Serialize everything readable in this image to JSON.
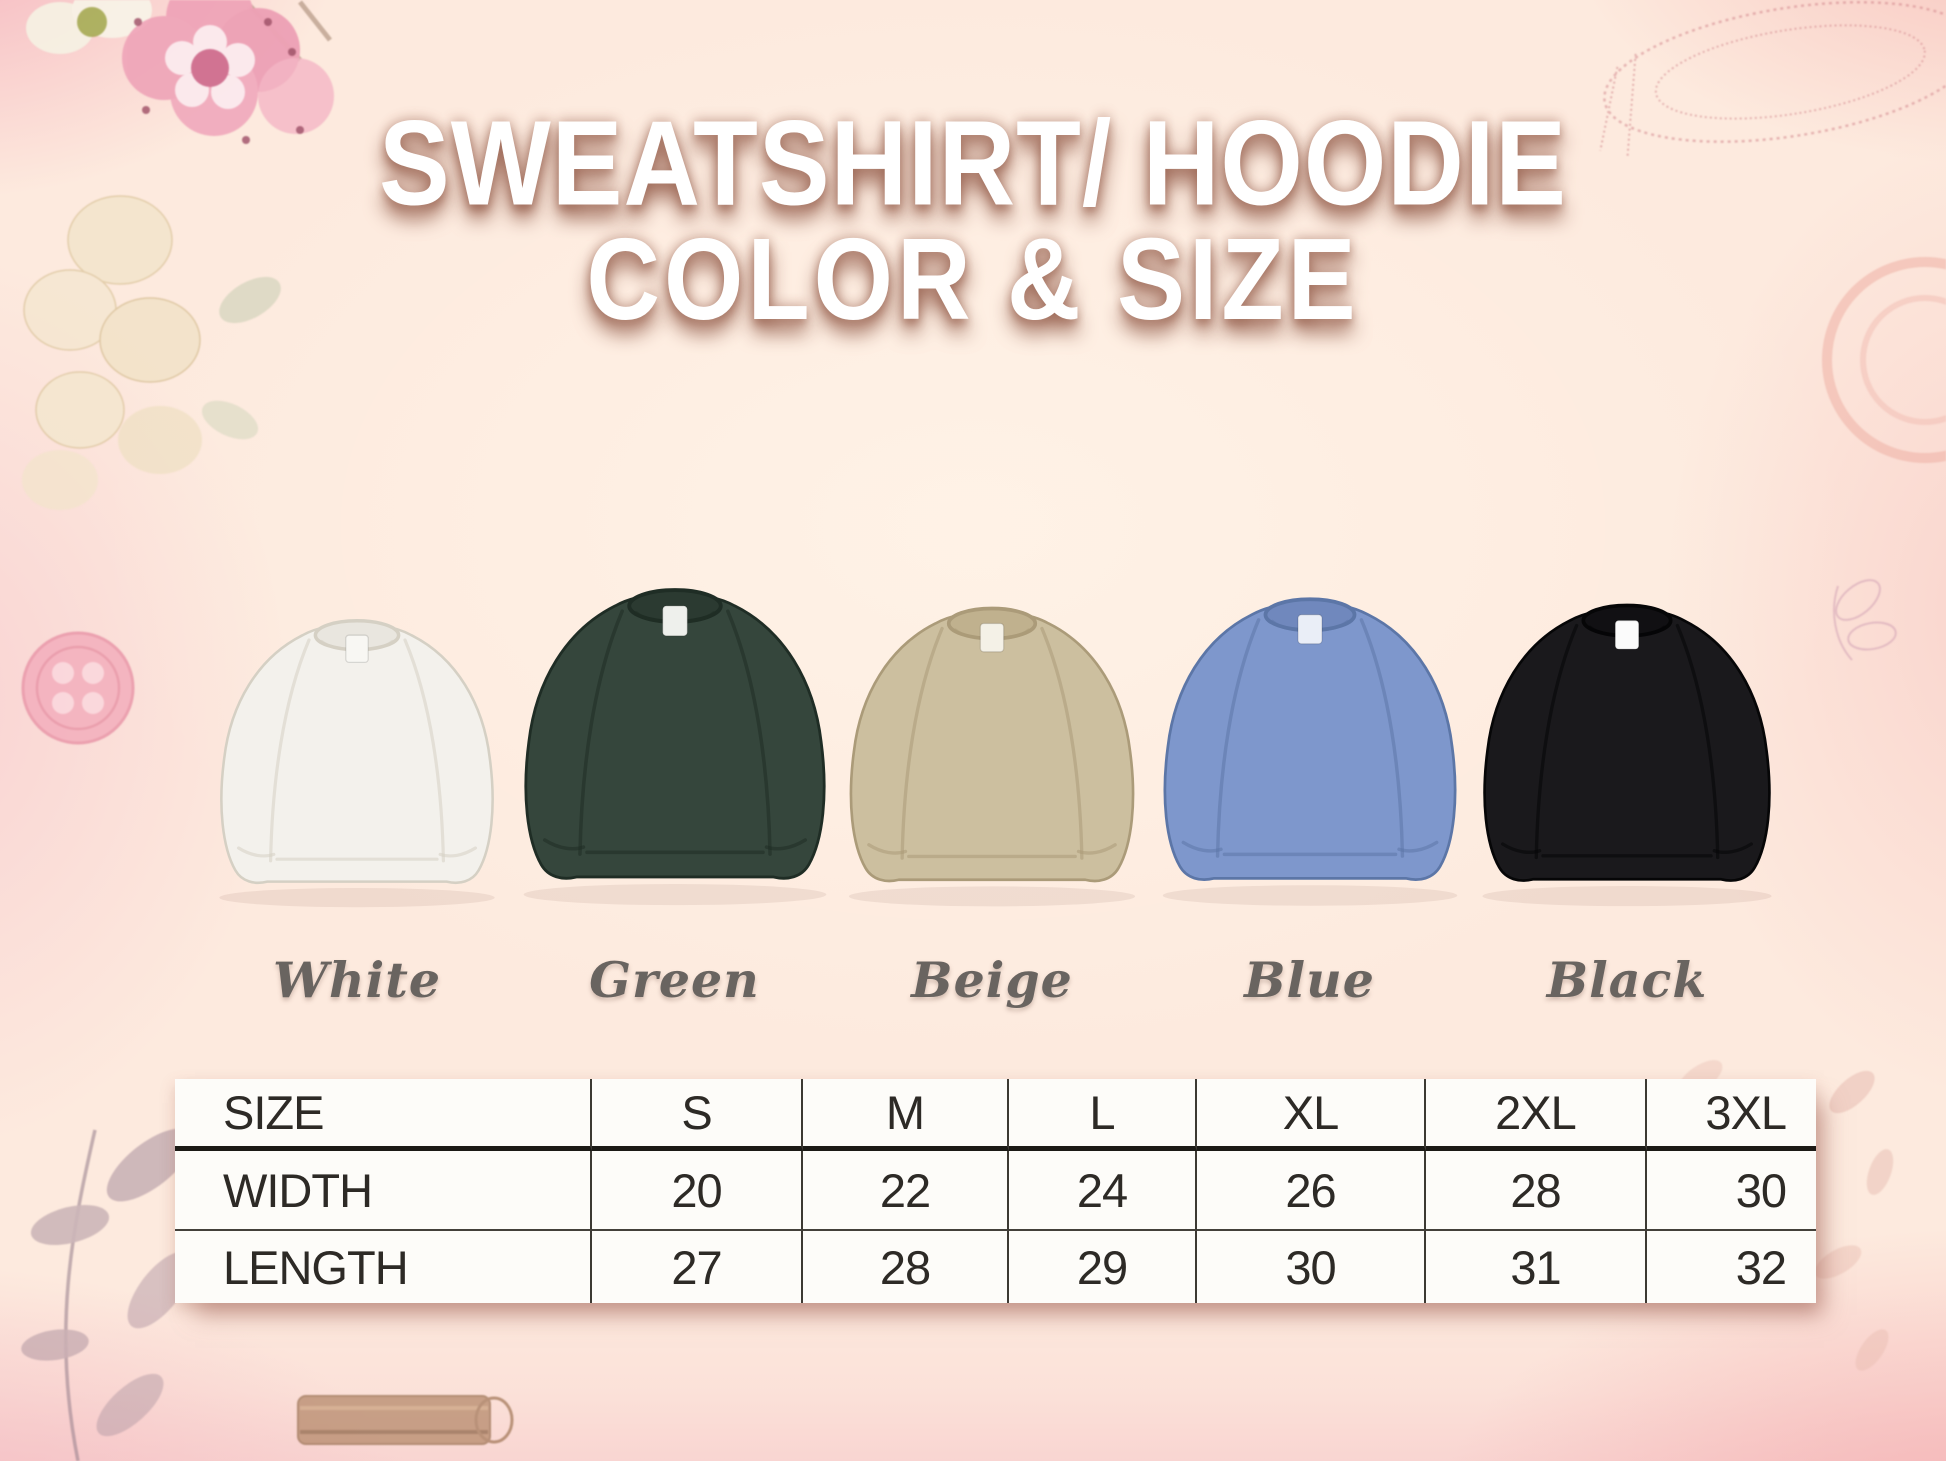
{
  "poster": {
    "title_line1": "SWEATSHIRT/ HOODIE",
    "title_line2": "COLOR & SIZE"
  },
  "products": [
    {
      "name": "White",
      "fill": "#f3f1ec",
      "shade": "#d5d0c4",
      "collar": "#e9e6df",
      "tag": "#f8f7f3"
    },
    {
      "name": "Green",
      "fill": "#35463c",
      "shade": "#1f2d25",
      "collar": "#2b3a31",
      "tag": "#eef0ec"
    },
    {
      "name": "Beige",
      "fill": "#ccbf9f",
      "shade": "#ab9b79",
      "collar": "#c0b18e",
      "tag": "#f4f1e7"
    },
    {
      "name": "Blue",
      "fill": "#7e97cc",
      "shade": "#5c76a7",
      "collar": "#7088bd",
      "tag": "#eaeef7"
    },
    {
      "name": "Black",
      "fill": "#1a191c",
      "shade": "#060607",
      "collar": "#111013",
      "tag": "#fbfbfb"
    }
  ],
  "size_table": {
    "header": [
      "SIZE",
      "S",
      "M",
      "L",
      "XL",
      "2XL",
      "3XL"
    ],
    "rows": [
      {
        "label": "WIDTH",
        "values": [
          "20",
          "22",
          "24",
          "26",
          "28",
          "30"
        ]
      },
      {
        "label": "LENGTH",
        "values": [
          "27",
          "28",
          "29",
          "30",
          "31",
          "32"
        ]
      }
    ]
  },
  "chart_data": {
    "type": "table",
    "title": "SWEATSHIRT/ HOODIE COLOR & SIZE",
    "columns": [
      "SIZE",
      "S",
      "M",
      "L",
      "XL",
      "2XL",
      "3XL"
    ],
    "rows": [
      [
        "WIDTH",
        20,
        22,
        24,
        26,
        28,
        30
      ],
      [
        "LENGTH",
        27,
        28,
        29,
        30,
        31,
        32
      ]
    ],
    "color_options": [
      "White",
      "Green",
      "Beige",
      "Blue",
      "Black"
    ]
  },
  "theme": {
    "background_peach": "#fdeadd",
    "edge_pink": "#f6c3c8",
    "title_text": "#ffffff",
    "title_shadow": "#97614f",
    "label_gray": "#696460",
    "table_ink": "#2d2a26",
    "table_background": "#fdfcf9"
  }
}
